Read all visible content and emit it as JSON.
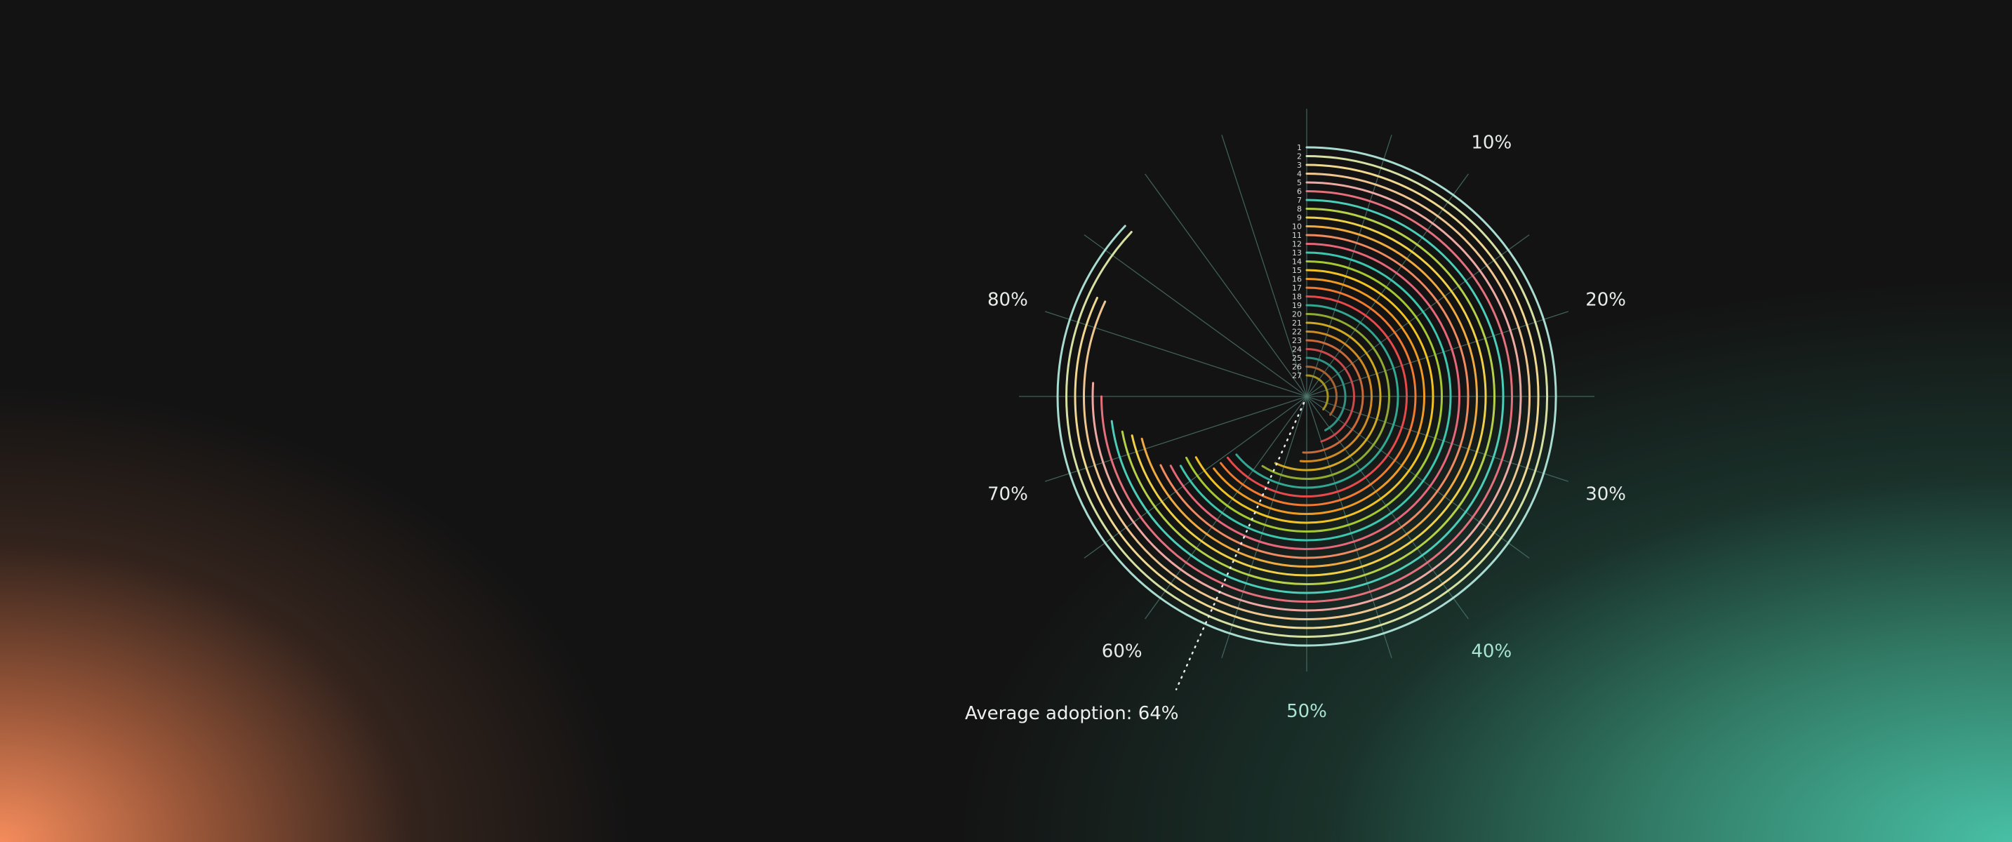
{
  "chart_data": {
    "type": "radial-bar",
    "title": "",
    "unit": "%",
    "range": [
      0,
      100
    ],
    "direction": "clockwise from top",
    "grid": true,
    "grid_step_percent": 5,
    "tick_labels": [
      "10%",
      "20%",
      "30%",
      "40%",
      "50%",
      "60%",
      "70%",
      "80%"
    ],
    "tick_values": [
      10,
      20,
      30,
      40,
      50,
      60,
      70,
      80
    ],
    "categories": [
      "1",
      "2",
      "3",
      "4",
      "5",
      "6",
      "7",
      "8",
      "9",
      "10",
      "11",
      "12",
      "13",
      "14",
      "15",
      "16",
      "17",
      "18",
      "19",
      "20",
      "21",
      "22",
      "23",
      "24",
      "25",
      "26",
      "27"
    ],
    "values": [
      87,
      87,
      82,
      82,
      76,
      75,
      73,
      72,
      71.5,
      71,
      68,
      67.5,
      67,
      67.5,
      67,
      64.5,
      64.5,
      64.5,
      64,
      59,
      57,
      51.5,
      51,
      45,
      42,
      35.5,
      35.5
    ],
    "colors": [
      "#a8dcd0",
      "#d6e0a2",
      "#f0d890",
      "#f0c690",
      "#eea8a2",
      "#e4707c",
      "#4ccdb8",
      "#b6d04a",
      "#f0d048",
      "#f0aa42",
      "#f08a60",
      "#e66878",
      "#3cc6ae",
      "#a6c832",
      "#f0c224",
      "#f09a24",
      "#f07a32",
      "#e64a4a",
      "#32a892",
      "#92aa32",
      "#d0a822",
      "#d08a24",
      "#c86a3a",
      "#c84a4a",
      "#2f9282",
      "#a86232",
      "#a39424"
    ],
    "average": {
      "label": "Average adoption: 64%",
      "value": 64
    }
  },
  "colors": {
    "background": "#131313",
    "glow_left": "#f58c5c",
    "glow_right": "#48c0a5",
    "grid": "#4f7a70"
  }
}
